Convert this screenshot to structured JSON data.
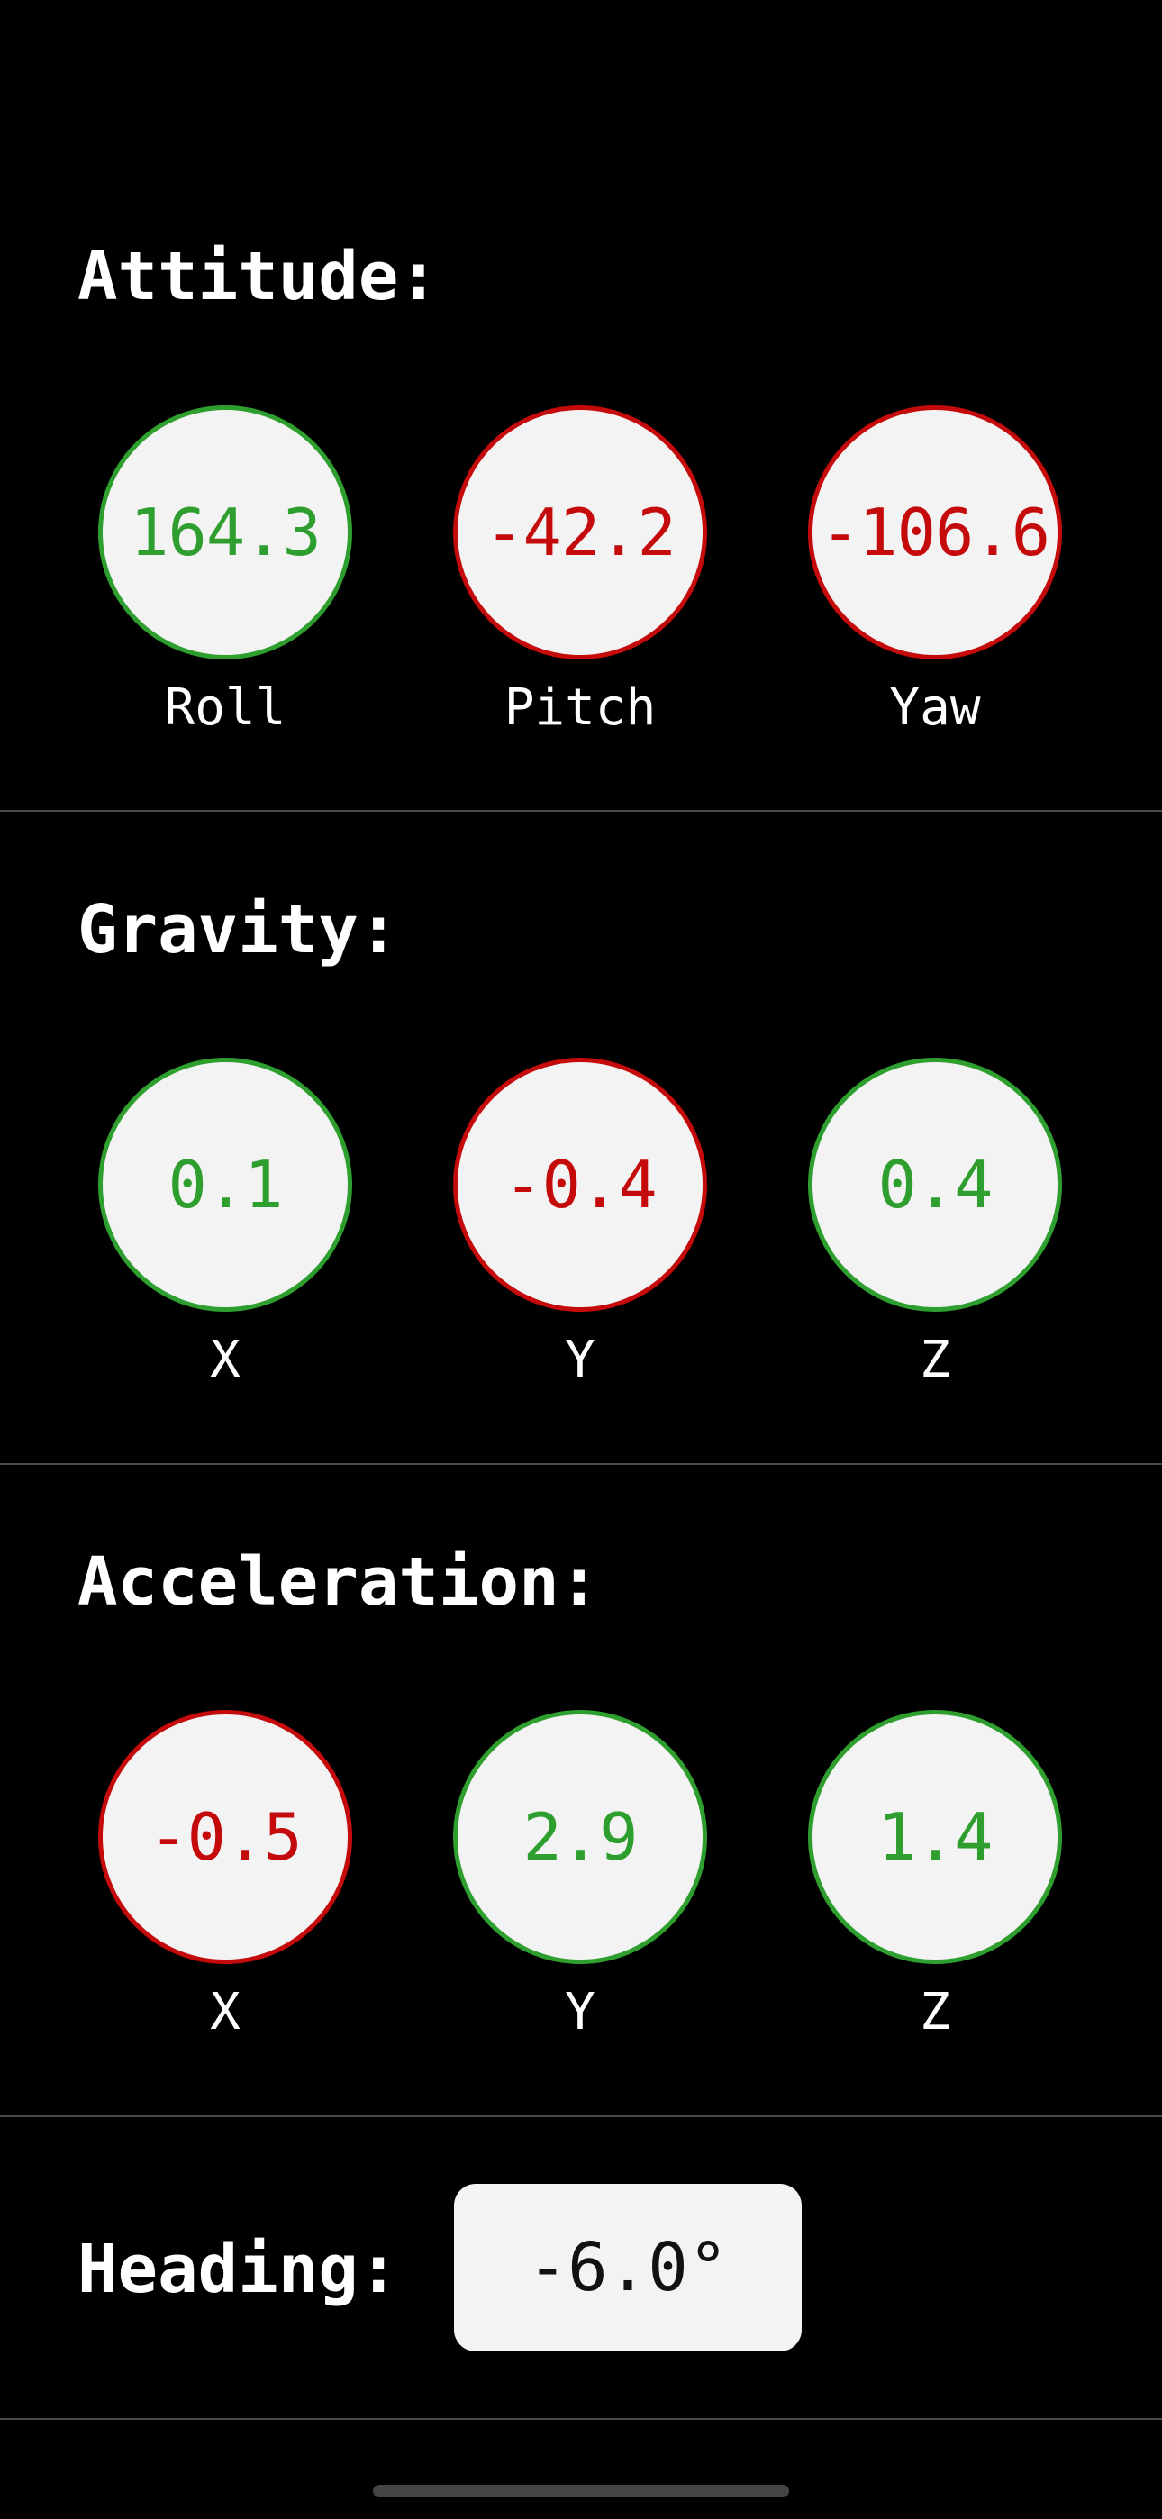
{
  "sections": [
    {
      "title": "Attitude:",
      "gauges": [
        {
          "value": "164.3",
          "label": "Roll",
          "sign": "positive"
        },
        {
          "value": "-42.2",
          "label": "Pitch",
          "sign": "negative"
        },
        {
          "value": "-106.6",
          "label": "Yaw",
          "sign": "negative"
        }
      ]
    },
    {
      "title": "Gravity:",
      "gauges": [
        {
          "value": "0.1",
          "label": "X",
          "sign": "positive"
        },
        {
          "value": "-0.4",
          "label": "Y",
          "sign": "negative"
        },
        {
          "value": "0.4",
          "label": "Z",
          "sign": "positive"
        }
      ]
    },
    {
      "title": "Acceleration:",
      "gauges": [
        {
          "value": "-0.5",
          "label": "X",
          "sign": "negative"
        },
        {
          "value": "2.9",
          "label": "Y",
          "sign": "positive"
        },
        {
          "value": "1.4",
          "label": "Z",
          "sign": "positive"
        }
      ]
    }
  ],
  "heading": {
    "title": "Heading:",
    "value": "-6.0°"
  },
  "colors": {
    "positive": "#2e9e2e",
    "negative": "#c40a0a",
    "background": "#000000",
    "gauge_fill": "#f3f3f3"
  }
}
